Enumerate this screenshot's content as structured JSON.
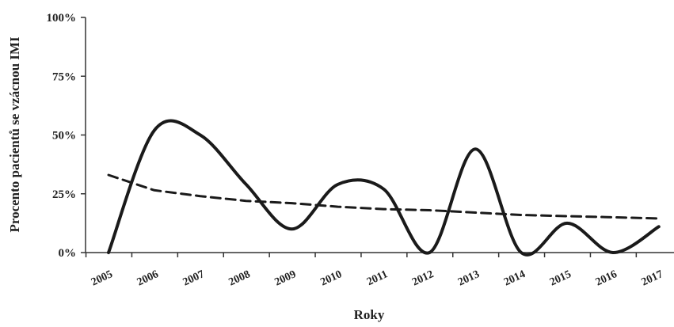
{
  "chart_data": {
    "type": "line",
    "title": "",
    "xlabel": "Roky",
    "ylabel": "Procento pacientů se vzácnou IMI",
    "ylim": [
      0,
      100
    ],
    "y_ticks": [
      "0%",
      "25%",
      "50%",
      "75%",
      "100%"
    ],
    "y_tick_values": [
      0,
      25,
      50,
      75,
      100
    ],
    "categories": [
      "2005",
      "2006",
      "2007",
      "2008",
      "2009",
      "2010",
      "2011",
      "2012",
      "2013",
      "2014",
      "2015",
      "2016",
      "2017"
    ],
    "x_ticks": [
      "2005",
      "2006",
      "2007",
      "2008",
      "2009",
      "2010",
      "2011",
      "2012",
      "2013",
      "2014",
      "2015",
      "2016",
      "2017"
    ],
    "grid": false,
    "legend": "none",
    "series": [
      {
        "style": "solid",
        "color": "#1a1a1a",
        "values": [
          0,
          52,
          50,
          29,
          10,
          29,
          27,
          0,
          44,
          0,
          12.5,
          0,
          11
        ]
      },
      {
        "style": "dashed",
        "trendline": true,
        "color": "#1a1a1a",
        "values": [
          33,
          26.5,
          24,
          22,
          21,
          19.5,
          18.5,
          18,
          17,
          16,
          15.5,
          15,
          14.5
        ]
      }
    ]
  }
}
